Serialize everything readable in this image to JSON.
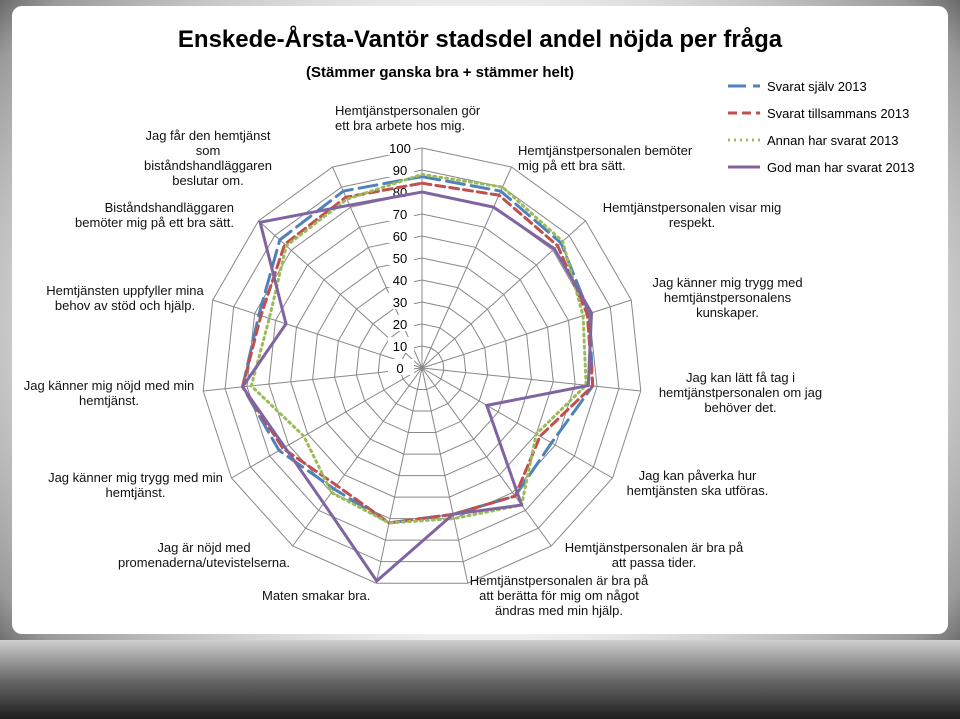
{
  "chart_data": {
    "type": "radar",
    "title": "Enskede-Årsta-Vantör stadsdel andel nöjda per fråga",
    "subtitle": "(Stämmer ganska bra + stämmer helt)",
    "categories": [
      "Hemtjänstpersonalen gör ett bra arbete hos mig.",
      "Hemtjänstpersonalen bemöter mig på ett bra sätt.",
      "Hemtjänstpersonalen visar mig respekt.",
      "Jag känner mig trygg med hemtjänstpersonalens kunskaper.",
      "Jag kan lätt få tag i hemtjänstpersonalen om jag behöver det.",
      "Jag kan påverka hur hemtjänsten ska utföras.",
      "Hemtjänstpersonalen är bra på att passa tider.",
      "Hemtjänstpersonalen är bra på att berätta för mig om något ändras med min hjälp.",
      "Maten smakar bra.",
      "Jag är nöjd med promenaderna/utevistelserna.",
      "Jag känner mig trygg med min hemtjänst.",
      "Jag känner mig nöjd med min hemtjänst.",
      "Hemtjänsten uppfyller mina behov av stöd och hjälp.",
      "Biståndshandläggaren bemöter mig på ett bra sätt.",
      "Jag får den hemtjänst som biståndshandläggaren beslutar om."
    ],
    "series": [
      {
        "name": "Svarat själv 2013",
        "color": "#4f81bd",
        "dash": "long-dash",
        "values": [
          87,
          88,
          85,
          80,
          78,
          68,
          72,
          68,
          72,
          68,
          75,
          82,
          78,
          87,
          88
        ]
      },
      {
        "name": "Svarat tillsammans 2013",
        "color": "#c0504d",
        "dash": "dash",
        "values": [
          84,
          86,
          83,
          79,
          78,
          62,
          72,
          68,
          72,
          66,
          73,
          82,
          77,
          84,
          85
        ]
      },
      {
        "name": "Annan har svarat 2013",
        "color": "#9bbb59",
        "dash": "dot",
        "values": [
          88,
          90,
          86,
          77,
          75,
          60,
          77,
          70,
          72,
          70,
          62,
          78,
          73,
          83,
          84
        ]
      },
      {
        "name": "God man har svarat 2013",
        "color": "#8064a2",
        "dash": "solid",
        "values": [
          80,
          80,
          81,
          81,
          76,
          34,
          77,
          68,
          99,
          76,
          72,
          82,
          65,
          99,
          81
        ]
      }
    ],
    "ylim": [
      0,
      100
    ],
    "yticks": [
      0,
      10,
      20,
      30,
      40,
      50,
      60,
      70,
      80,
      90,
      100
    ],
    "grid": true,
    "legend": "top-right"
  }
}
